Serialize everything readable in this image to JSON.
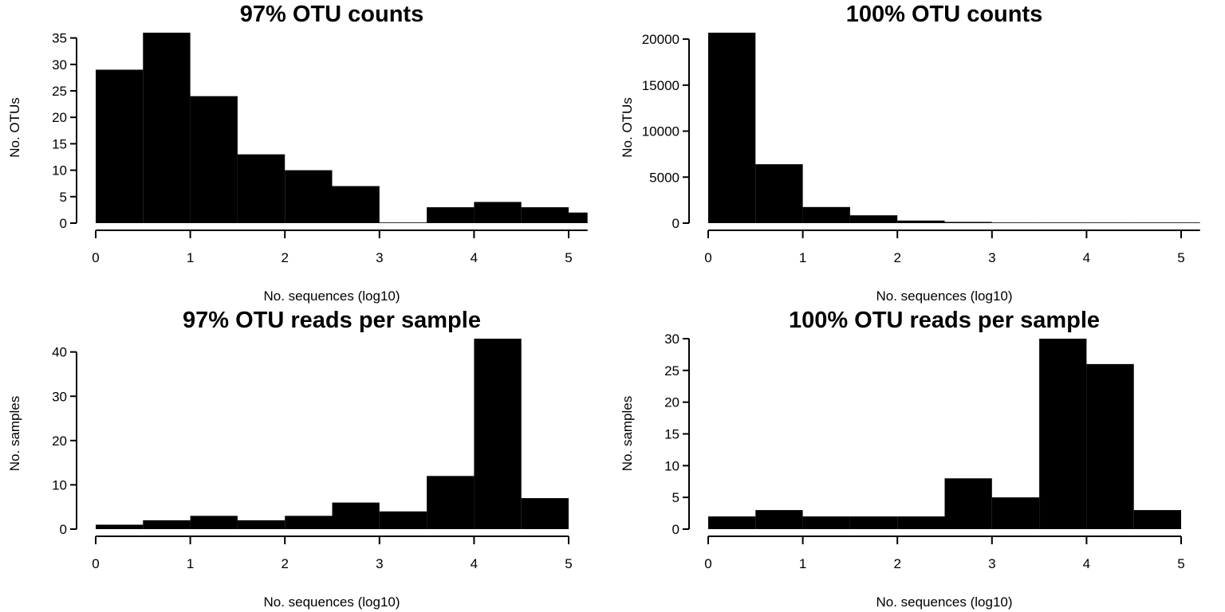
{
  "chart_data": [
    {
      "type": "bar",
      "title": "97% OTU counts",
      "xlabel": "No. sequences (log10)",
      "ylabel": "No. OTUs",
      "bin_edges": [
        0,
        0.5,
        1,
        1.5,
        2,
        2.5,
        3,
        3.5,
        4,
        4.5,
        5,
        5.2
      ],
      "values": [
        29,
        36,
        24,
        13,
        10,
        7,
        0,
        3,
        4,
        3,
        2
      ],
      "xlim": [
        0,
        5.2
      ],
      "ylim": [
        0,
        36
      ],
      "xticks": [
        0,
        1,
        2,
        3,
        4,
        5
      ],
      "yticks": [
        0,
        5,
        10,
        15,
        20,
        25,
        30,
        35
      ],
      "bar_color": "#000000",
      "grid": false
    },
    {
      "type": "bar",
      "title": "100% OTU counts",
      "xlabel": "No. sequences (log10)",
      "ylabel": "No. OTUs",
      "bin_edges": [
        0,
        0.5,
        1,
        1.5,
        2,
        2.5,
        3,
        3.5,
        4,
        4.5,
        5,
        5.2
      ],
      "values": [
        20700,
        6400,
        1750,
        850,
        280,
        130,
        60,
        40,
        30,
        20,
        10
      ],
      "xlim": [
        0,
        5.2
      ],
      "ylim": [
        0,
        20700
      ],
      "xticks": [
        0,
        1,
        2,
        3,
        4,
        5
      ],
      "yticks": [
        0,
        5000,
        10000,
        15000,
        20000
      ],
      "bar_color": "#000000",
      "grid": false
    },
    {
      "type": "bar",
      "title": "97% OTU reads per sample",
      "xlabel": "No. sequences (log10)",
      "ylabel": "No. samples",
      "bin_edges": [
        0,
        0.5,
        1,
        1.5,
        2,
        2.5,
        3,
        3.5,
        4,
        4.5,
        5
      ],
      "values": [
        1,
        2,
        3,
        2,
        3,
        6,
        4,
        12,
        43,
        7
      ],
      "xlim": [
        0,
        5
      ],
      "ylim": [
        0,
        43
      ],
      "xticks": [
        0,
        1,
        2,
        3,
        4,
        5
      ],
      "yticks": [
        0,
        10,
        20,
        30,
        40
      ],
      "bar_color": "#000000",
      "grid": false
    },
    {
      "type": "bar",
      "title": "100% OTU reads per sample",
      "xlabel": "No. sequences (log10)",
      "ylabel": "No. samples",
      "bin_edges": [
        0,
        0.5,
        1,
        1.5,
        2,
        2.5,
        3,
        3.5,
        4,
        4.5,
        5
      ],
      "values": [
        2,
        3,
        2,
        2,
        2,
        8,
        5,
        30,
        26,
        3
      ],
      "xlim": [
        0,
        5
      ],
      "ylim": [
        0,
        30
      ],
      "xticks": [
        0,
        1,
        2,
        3,
        4,
        5
      ],
      "yticks": [
        0,
        5,
        10,
        15,
        20,
        25,
        30
      ],
      "bar_color": "#000000",
      "grid": false
    }
  ]
}
